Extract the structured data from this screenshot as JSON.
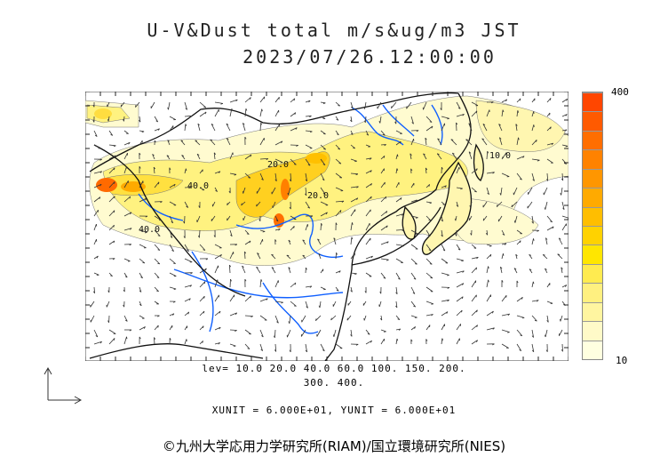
{
  "title": {
    "line1": "U-V&Dust total m/s&ug/m3 JST",
    "line2": "2023/07/26.12:00:00"
  },
  "legend": {
    "max_label": "400",
    "min_label": "10",
    "colors": [
      "#ffffe0",
      "#fffac8",
      "#fff5a0",
      "#fff080",
      "#ffeb50",
      "#ffe600",
      "#ffd200",
      "#ffbe00",
      "#ffaa00",
      "#ff9600",
      "#ff8200",
      "#ff6e00",
      "#ff5a00",
      "#ff4600"
    ]
  },
  "map": {
    "contour_labels": [
      "40.0",
      "40.0",
      "20.0",
      "20.0",
      "10.0"
    ]
  },
  "levels": {
    "line1": "lev= 10.0 20.0 40.0 60.0 100. 150. 200.",
    "line2": "300. 400."
  },
  "units": "XUNIT = 6.000E+01, YUNIT = 6.000E+01",
  "copyright": "©九州大学応用力学研究所(RIAM)/国立環境研究所(NIES)"
}
